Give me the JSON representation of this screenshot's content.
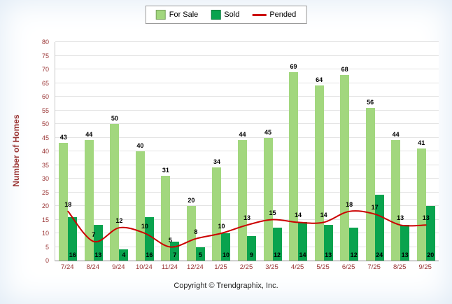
{
  "legend": {
    "items": [
      {
        "label": "For Sale",
        "color": "#a2d77e",
        "type": "box"
      },
      {
        "label": "Sold",
        "color": "#09a34e",
        "type": "box"
      },
      {
        "label": "Pended",
        "color": "#cc0000",
        "type": "line"
      }
    ]
  },
  "footer": "Copyright © Trendgraphix, Inc.",
  "chart_data": {
    "type": "bar",
    "title": "",
    "categories": [
      "7/24",
      "8/24",
      "9/24",
      "10/24",
      "11/24",
      "12/24",
      "1/25",
      "2/25",
      "3/25",
      "4/25",
      "5/25",
      "6/25",
      "7/25",
      "8/25",
      "9/25"
    ],
    "series": [
      {
        "name": "For Sale",
        "kind": "bar",
        "color": "#a2d77e",
        "values": [
          43,
          44,
          50,
          40,
          31,
          20,
          34,
          44,
          45,
          69,
          64,
          68,
          56,
          44,
          41
        ]
      },
      {
        "name": "Sold",
        "kind": "bar",
        "color": "#09a34e",
        "values": [
          16,
          13,
          4,
          16,
          7,
          5,
          10,
          9,
          12,
          14,
          13,
          12,
          24,
          13,
          20
        ]
      },
      {
        "name": "Pended",
        "kind": "line",
        "color": "#cc0000",
        "values": [
          18,
          7,
          12,
          10,
          5,
          8,
          10,
          13,
          15,
          14,
          14,
          18,
          17,
          13,
          13
        ]
      }
    ],
    "xlabel": "",
    "ylabel": "Number of Homes",
    "ylim": [
      0,
      80
    ],
    "ytick_step": 5,
    "grid": true,
    "legend_position": "top"
  }
}
